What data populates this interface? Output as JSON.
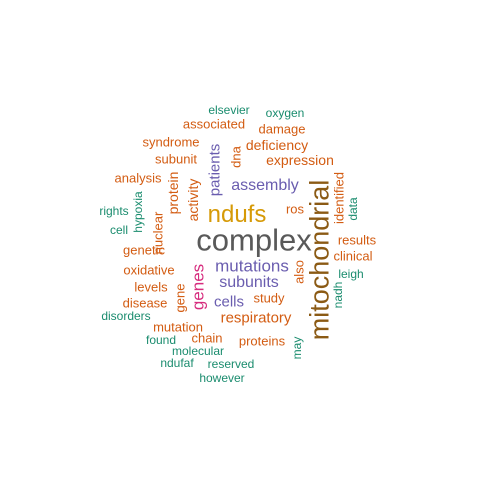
{
  "palette": {
    "gray": "#595959",
    "brown": "#8B5A14",
    "gold": "#D69A07",
    "purple": "#6A5DAF",
    "magenta": "#D62C7E",
    "orange": "#D35C12",
    "teal": "#1A8C6E"
  },
  "words": [
    {
      "text": "complex",
      "color": "gray"
    },
    {
      "text": "mitochondrial",
      "color": "brown"
    },
    {
      "text": "ndufs",
      "color": "gold"
    },
    {
      "text": "genes",
      "color": "magenta"
    },
    {
      "text": "mutations",
      "color": "purple"
    },
    {
      "text": "assembly",
      "color": "purple"
    },
    {
      "text": "subunits",
      "color": "purple"
    },
    {
      "text": "patients",
      "color": "purple"
    },
    {
      "text": "cells",
      "color": "purple"
    },
    {
      "text": "respiratory",
      "color": "orange"
    },
    {
      "text": "expression",
      "color": "orange"
    },
    {
      "text": "activity",
      "color": "orange"
    },
    {
      "text": "protein",
      "color": "orange"
    },
    {
      "text": "deficiency",
      "color": "orange"
    },
    {
      "text": "oxidative",
      "color": "orange"
    },
    {
      "text": "study",
      "color": "orange"
    },
    {
      "text": "also",
      "color": "orange"
    },
    {
      "text": "nuclear",
      "color": "orange"
    },
    {
      "text": "chain",
      "color": "orange"
    },
    {
      "text": "proteins",
      "color": "orange"
    },
    {
      "text": "mutation",
      "color": "orange"
    },
    {
      "text": "levels",
      "color": "orange"
    },
    {
      "text": "disease",
      "color": "orange"
    },
    {
      "text": "genetic",
      "color": "orange"
    },
    {
      "text": "clinical",
      "color": "orange"
    },
    {
      "text": "results",
      "color": "orange"
    },
    {
      "text": "identified",
      "color": "orange"
    },
    {
      "text": "associated",
      "color": "orange"
    },
    {
      "text": "damage",
      "color": "orange"
    },
    {
      "text": "syndrome",
      "color": "orange"
    },
    {
      "text": "analysis",
      "color": "orange"
    },
    {
      "text": "subunit",
      "color": "orange"
    },
    {
      "text": "dna",
      "color": "orange"
    },
    {
      "text": "ros",
      "color": "orange"
    },
    {
      "text": "gene",
      "color": "orange"
    },
    {
      "text": "elsevier",
      "color": "teal"
    },
    {
      "text": "oxygen",
      "color": "teal"
    },
    {
      "text": "hypoxia",
      "color": "teal"
    },
    {
      "text": "rights",
      "color": "teal"
    },
    {
      "text": "cell",
      "color": "teal"
    },
    {
      "text": "data",
      "color": "teal"
    },
    {
      "text": "leigh",
      "color": "teal"
    },
    {
      "text": "nadh",
      "color": "teal"
    },
    {
      "text": "disorders",
      "color": "teal"
    },
    {
      "text": "found",
      "color": "teal"
    },
    {
      "text": "molecular",
      "color": "teal"
    },
    {
      "text": "ndufaf",
      "color": "teal"
    },
    {
      "text": "reserved",
      "color": "teal"
    },
    {
      "text": "however",
      "color": "teal"
    },
    {
      "text": "may",
      "color": "teal"
    }
  ]
}
